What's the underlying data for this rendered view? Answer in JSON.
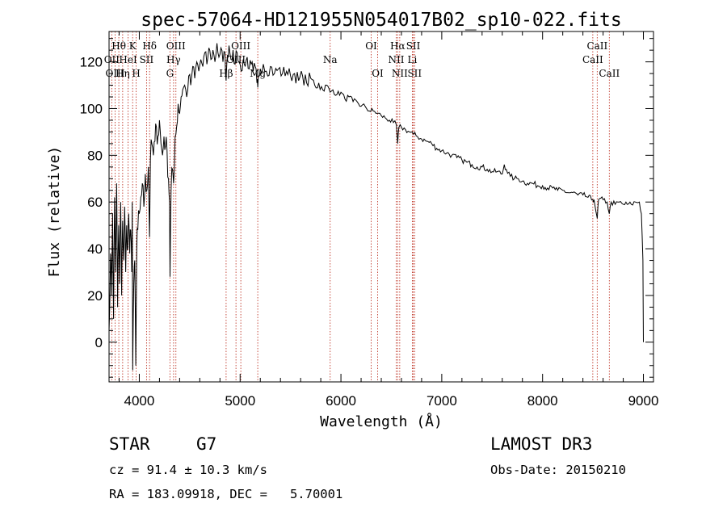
{
  "chart_data": {
    "type": "line",
    "title": "spec-57064-HD121955N054017B02_sp10-022.fits",
    "xlabel": "Wavelength (Å)",
    "ylabel": "Flux (relative)",
    "xlim": [
      3700,
      9100
    ],
    "ylim": [
      -17,
      133
    ],
    "x_ticks": [
      4000,
      5000,
      6000,
      7000,
      8000,
      9000
    ],
    "y_ticks": [
      0,
      20,
      40,
      60,
      80,
      100,
      120
    ],
    "grid": false,
    "series": [
      {
        "name": "flux",
        "points": [
          [
            3700,
            5
          ],
          [
            3715,
            38
          ],
          [
            3725,
            20
          ],
          [
            3735,
            55
          ],
          [
            3745,
            10
          ],
          [
            3755,
            62
          ],
          [
            3765,
            30
          ],
          [
            3775,
            68
          ],
          [
            3785,
            15
          ],
          [
            3795,
            50
          ],
          [
            3805,
            25
          ],
          [
            3815,
            60
          ],
          [
            3825,
            20
          ],
          [
            3835,
            52
          ],
          [
            3845,
            35
          ],
          [
            3855,
            58
          ],
          [
            3865,
            30
          ],
          [
            3875,
            50
          ],
          [
            3885,
            40
          ],
          [
            3895,
            55
          ],
          [
            3905,
            38
          ],
          [
            3915,
            48
          ],
          [
            3925,
            30
          ],
          [
            3930,
            60
          ],
          [
            3935,
            -12
          ],
          [
            3945,
            25
          ],
          [
            3955,
            35
          ],
          [
            3965,
            -10
          ],
          [
            3975,
            40
          ],
          [
            3985,
            48
          ],
          [
            4000,
            55
          ],
          [
            4015,
            62
          ],
          [
            4030,
            68
          ],
          [
            4045,
            58
          ],
          [
            4060,
            72
          ],
          [
            4075,
            65
          ],
          [
            4090,
            75
          ],
          [
            4101,
            45
          ],
          [
            4110,
            78
          ],
          [
            4125,
            85
          ],
          [
            4140,
            80
          ],
          [
            4155,
            86
          ],
          [
            4170,
            92
          ],
          [
            4185,
            88
          ],
          [
            4200,
            95
          ],
          [
            4215,
            85
          ],
          [
            4230,
            80
          ],
          [
            4245,
            88
          ],
          [
            4260,
            84
          ],
          [
            4275,
            82
          ],
          [
            4290,
            70
          ],
          [
            4300,
            60
          ],
          [
            4305,
            28
          ],
          [
            4315,
            65
          ],
          [
            4330,
            74
          ],
          [
            4340,
            68
          ],
          [
            4355,
            88
          ],
          [
            4370,
            92
          ],
          [
            4385,
            102
          ],
          [
            4400,
            98
          ],
          [
            4415,
            105
          ],
          [
            4430,
            108
          ],
          [
            4450,
            110
          ],
          [
            4470,
            105
          ],
          [
            4490,
            114
          ],
          [
            4510,
            110
          ],
          [
            4530,
            118
          ],
          [
            4550,
            113
          ],
          [
            4570,
            120
          ],
          [
            4590,
            116
          ],
          [
            4610,
            121
          ],
          [
            4630,
            118
          ],
          [
            4650,
            124
          ],
          [
            4670,
            119
          ],
          [
            4690,
            126
          ],
          [
            4710,
            121
          ],
          [
            4730,
            125
          ],
          [
            4750,
            120
          ],
          [
            4770,
            128
          ],
          [
            4790,
            122
          ],
          [
            4810,
            126
          ],
          [
            4830,
            120
          ],
          [
            4850,
            124
          ],
          [
            4861,
            112
          ],
          [
            4875,
            123
          ],
          [
            4890,
            127
          ],
          [
            4910,
            121
          ],
          [
            4930,
            125
          ],
          [
            4950,
            119
          ],
          [
            4970,
            124
          ],
          [
            4990,
            120
          ],
          [
            5010,
            116
          ],
          [
            5030,
            121
          ],
          [
            5050,
            118
          ],
          [
            5070,
            122
          ],
          [
            5090,
            117
          ],
          [
            5110,
            119
          ],
          [
            5130,
            116
          ],
          [
            5150,
            118
          ],
          [
            5167,
            111
          ],
          [
            5175,
            109
          ],
          [
            5185,
            114
          ],
          [
            5200,
            117
          ],
          [
            5230,
            119
          ],
          [
            5260,
            116
          ],
          [
            5300,
            118
          ],
          [
            5340,
            115
          ],
          [
            5380,
            117
          ],
          [
            5420,
            115
          ],
          [
            5460,
            116
          ],
          [
            5500,
            114
          ],
          [
            5540,
            115
          ],
          [
            5580,
            112
          ],
          [
            5620,
            114
          ],
          [
            5660,
            111
          ],
          [
            5700,
            113
          ],
          [
            5740,
            110
          ],
          [
            5780,
            111
          ],
          [
            5820,
            108
          ],
          [
            5860,
            110
          ],
          [
            5893,
            107
          ],
          [
            5920,
            108
          ],
          [
            5960,
            106
          ],
          [
            6000,
            107
          ],
          [
            6040,
            104
          ],
          [
            6080,
            105
          ],
          [
            6120,
            103
          ],
          [
            6160,
            103
          ],
          [
            6200,
            101
          ],
          [
            6240,
            101
          ],
          [
            6280,
            99
          ],
          [
            6320,
            99
          ],
          [
            6360,
            98
          ],
          [
            6400,
            97
          ],
          [
            6440,
            96
          ],
          [
            6480,
            95
          ],
          [
            6520,
            94
          ],
          [
            6550,
            93
          ],
          [
            6563,
            85
          ],
          [
            6575,
            92
          ],
          [
            6600,
            92
          ],
          [
            6640,
            91
          ],
          [
            6680,
            90
          ],
          [
            6720,
            89
          ],
          [
            6760,
            88
          ],
          [
            6800,
            87
          ],
          [
            6850,
            86
          ],
          [
            6900,
            85
          ],
          [
            6950,
            83
          ],
          [
            7000,
            82
          ],
          [
            7050,
            81
          ],
          [
            7100,
            80
          ],
          [
            7150,
            79
          ],
          [
            7200,
            78
          ],
          [
            7250,
            77
          ],
          [
            7300,
            76
          ],
          [
            7350,
            75
          ],
          [
            7400,
            75
          ],
          [
            7450,
            74
          ],
          [
            7500,
            73
          ],
          [
            7550,
            73
          ],
          [
            7600,
            72
          ],
          [
            7620,
            76
          ],
          [
            7640,
            74
          ],
          [
            7680,
            71
          ],
          [
            7720,
            70
          ],
          [
            7760,
            70
          ],
          [
            7800,
            69
          ],
          [
            7850,
            68
          ],
          [
            7900,
            68
          ],
          [
            7950,
            67
          ],
          [
            8000,
            67
          ],
          [
            8050,
            66
          ],
          [
            8100,
            66
          ],
          [
            8150,
            65
          ],
          [
            8200,
            65
          ],
          [
            8250,
            64
          ],
          [
            8300,
            64
          ],
          [
            8350,
            63
          ],
          [
            8400,
            63
          ],
          [
            8450,
            62
          ],
          [
            8498,
            61
          ],
          [
            8510,
            61
          ],
          [
            8542,
            53
          ],
          [
            8555,
            61
          ],
          [
            8600,
            61
          ],
          [
            8640,
            60
          ],
          [
            8662,
            55
          ],
          [
            8680,
            60
          ],
          [
            8720,
            59
          ],
          [
            8760,
            60
          ],
          [
            8800,
            59
          ],
          [
            8840,
            59
          ],
          [
            8880,
            59
          ],
          [
            8920,
            60
          ],
          [
            8960,
            60
          ],
          [
            8980,
            55
          ],
          [
            8995,
            35
          ],
          [
            9000,
            0
          ]
        ]
      }
    ],
    "line_markers": [
      {
        "label": "Hθ",
        "wl": 3797,
        "row": 1
      },
      {
        "label": "OII",
        "wl": 3727,
        "row": 2
      },
      {
        "label": "OIII",
        "wl": 3760,
        "row": 3
      },
      {
        "label": "Hη",
        "wl": 3835,
        "row": 3
      },
      {
        "label": "HeI",
        "wl": 3889,
        "row": 2
      },
      {
        "label": "K",
        "wl": 3934,
        "row": 1
      },
      {
        "label": "H",
        "wl": 3969,
        "row": 3
      },
      {
        "label": "SII",
        "wl": 4072,
        "row": 2
      },
      {
        "label": "Hδ",
        "wl": 4102,
        "row": 1
      },
      {
        "label": "OIII",
        "wl": 4363,
        "row": 1
      },
      {
        "label": "Hγ",
        "wl": 4340,
        "row": 2
      },
      {
        "label": "G",
        "wl": 4304,
        "row": 3
      },
      {
        "label": "OIII",
        "wl": 5007,
        "row": 1
      },
      {
        "label": "OIII",
        "wl": 4959,
        "row": 2
      },
      {
        "label": "Hβ",
        "wl": 4861,
        "row": 3
      },
      {
        "label": "Mg",
        "wl": 5175,
        "row": 3
      },
      {
        "label": "Na",
        "wl": 5893,
        "row": 2
      },
      {
        "label": "OI",
        "wl": 6300,
        "row": 1
      },
      {
        "label": "OI",
        "wl": 6364,
        "row": 3
      },
      {
        "label": "Hα",
        "wl": 6563,
        "row": 1
      },
      {
        "label": "NII",
        "wl": 6548,
        "row": 2
      },
      {
        "label": "NII",
        "wl": 6583,
        "row": 3
      },
      {
        "label": "SII",
        "wl": 6717,
        "row": 1
      },
      {
        "label": "Li",
        "wl": 6708,
        "row": 2
      },
      {
        "label": "SII",
        "wl": 6731,
        "row": 3
      },
      {
        "label": "CaII",
        "wl": 8542,
        "row": 1
      },
      {
        "label": "CaII",
        "wl": 8498,
        "row": 2
      },
      {
        "label": "CaII",
        "wl": 8662,
        "row": 3
      }
    ]
  },
  "info": {
    "object_class": "STAR",
    "subclass": "G7",
    "survey": "LAMOST DR3",
    "cz_line": "cz = 91.4 ± 10.3 km/s",
    "obs_date_line": "Obs-Date: 20150210",
    "coords_line": "RA = 183.09918, DEC =   5.70001"
  },
  "colors": {
    "axes": "#000000",
    "spectrum": "#000000",
    "marker_line": "#c0392b"
  }
}
